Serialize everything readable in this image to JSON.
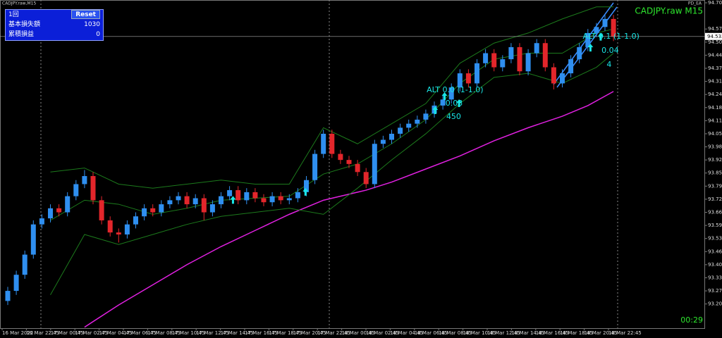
{
  "window_title": "CADJPY.raw,M15",
  "symbol_label": "CADJPY.raw M15",
  "ea_label": "PD_EA",
  "timer": "00:29",
  "panel": {
    "rows": [
      [
        "1回",
        "Reset"
      ],
      [
        "基本損失額",
        "1030"
      ],
      [
        "累積損益",
        "0"
      ]
    ]
  },
  "chart_data": {
    "type": "candlestick",
    "open": [
      93.22,
      93.27,
      93.35,
      93.45,
      93.6,
      93.63,
      93.68,
      93.66,
      93.74,
      93.8,
      93.84,
      93.72,
      93.62,
      93.56,
      93.55,
      93.6,
      93.64,
      93.68,
      93.66,
      93.7,
      93.72,
      93.74,
      93.7,
      93.73,
      93.66,
      93.7,
      93.74,
      93.77,
      93.72,
      93.76,
      93.73,
      93.71,
      93.74,
      93.72,
      93.73,
      93.76,
      93.82,
      93.95,
      94.05,
      93.95,
      93.92,
      93.9,
      93.86,
      93.8,
      94.0,
      94.02,
      94.05,
      94.08,
      94.1,
      94.12,
      94.15,
      94.19,
      94.22,
      94.28,
      94.35,
      94.3,
      94.4,
      94.45,
      94.38,
      94.42,
      94.48,
      94.36,
      94.45,
      94.5,
      94.38,
      94.3,
      94.35,
      94.42,
      94.48,
      94.55,
      94.58,
      94.62
    ],
    "high": [
      93.29,
      93.37,
      93.47,
      93.62,
      93.65,
      93.7,
      93.7,
      93.76,
      93.82,
      93.87,
      93.86,
      93.74,
      93.64,
      93.58,
      93.62,
      93.66,
      93.7,
      93.7,
      93.72,
      93.74,
      93.76,
      93.76,
      93.75,
      93.75,
      93.72,
      93.76,
      93.79,
      93.79,
      93.78,
      93.78,
      93.75,
      93.76,
      93.76,
      93.75,
      93.78,
      93.84,
      93.97,
      94.07,
      94.07,
      93.97,
      93.94,
      93.92,
      93.88,
      94.02,
      94.04,
      94.07,
      94.1,
      94.12,
      94.14,
      94.17,
      94.21,
      94.24,
      94.3,
      94.37,
      94.37,
      94.42,
      94.47,
      94.47,
      94.44,
      94.5,
      94.5,
      94.47,
      94.52,
      94.52,
      94.4,
      94.37,
      94.44,
      94.5,
      94.57,
      94.6,
      94.64,
      94.64
    ],
    "low": [
      93.2,
      93.25,
      93.33,
      93.43,
      93.58,
      93.61,
      93.64,
      93.64,
      93.72,
      93.78,
      93.7,
      93.6,
      93.54,
      93.51,
      93.53,
      93.58,
      93.62,
      93.64,
      93.64,
      93.68,
      93.7,
      93.68,
      93.68,
      93.62,
      93.64,
      93.68,
      93.72,
      93.7,
      93.7,
      93.71,
      93.69,
      93.69,
      93.7,
      93.7,
      93.71,
      93.74,
      93.8,
      93.93,
      93.93,
      93.9,
      93.88,
      93.84,
      93.78,
      93.78,
      93.98,
      94.0,
      94.03,
      94.06,
      94.08,
      94.1,
      94.13,
      94.17,
      94.2,
      94.26,
      94.28,
      94.28,
      94.38,
      94.36,
      94.36,
      94.4,
      94.34,
      94.34,
      94.43,
      94.36,
      94.27,
      94.28,
      94.33,
      94.4,
      94.46,
      94.53,
      94.56,
      94.51
    ],
    "close": [
      93.27,
      93.35,
      93.45,
      93.6,
      93.63,
      93.68,
      93.66,
      93.74,
      93.8,
      93.84,
      93.72,
      93.62,
      93.56,
      93.55,
      93.6,
      93.64,
      93.68,
      93.66,
      93.7,
      93.72,
      93.74,
      93.7,
      93.73,
      93.66,
      93.7,
      93.74,
      93.77,
      93.72,
      93.76,
      93.73,
      93.71,
      93.74,
      93.72,
      93.73,
      93.76,
      93.82,
      93.95,
      94.05,
      93.95,
      93.92,
      93.9,
      93.86,
      93.8,
      94.0,
      94.02,
      94.05,
      94.08,
      94.1,
      94.12,
      94.15,
      94.19,
      94.22,
      94.28,
      94.35,
      94.3,
      94.4,
      94.45,
      94.38,
      94.42,
      94.48,
      94.36,
      94.45,
      94.5,
      94.38,
      94.3,
      94.35,
      94.42,
      94.48,
      94.55,
      94.58,
      94.62,
      94.533
    ],
    "up_color": "#2f8ff0",
    "down_color": "#e3262b",
    "ylim": [
      93.085,
      94.714
    ],
    "yticks": [
      {
        "value": 94.7,
        "label": "94.700"
      },
      {
        "value": 94.57,
        "label": "94.570"
      },
      {
        "value": 94.505,
        "label": "94.505"
      },
      {
        "value": 94.44,
        "label": "94.440"
      },
      {
        "value": 94.375,
        "label": "94.375"
      },
      {
        "value": 94.31,
        "label": "94.310"
      },
      {
        "value": 94.245,
        "label": "94.245"
      },
      {
        "value": 94.18,
        "label": "94.180"
      },
      {
        "value": 94.115,
        "label": "94.115"
      },
      {
        "value": 94.05,
        "label": "94.050"
      },
      {
        "value": 93.985,
        "label": "93.985"
      },
      {
        "value": 93.92,
        "label": "93.920"
      },
      {
        "value": 93.855,
        "label": "93.855"
      },
      {
        "value": 93.79,
        "label": "93.790"
      },
      {
        "value": 93.725,
        "label": "93.725"
      },
      {
        "value": 93.66,
        "label": "93.660"
      },
      {
        "value": 93.595,
        "label": "93.595"
      },
      {
        "value": 93.53,
        "label": "93.530"
      },
      {
        "value": 93.465,
        "label": "93.465"
      },
      {
        "value": 93.4,
        "label": "93.400"
      },
      {
        "value": 93.335,
        "label": "93.335"
      },
      {
        "value": 93.27,
        "label": "93.270"
      },
      {
        "value": 93.205,
        "label": "93.205"
      }
    ],
    "current_price": 94.533,
    "time_labels": [
      "16 Mar 2022",
      "16 Mar 22:45",
      "17 Mar 00:45",
      "17 Mar 02:45",
      "17 Mar 04:45",
      "17 Mar 06:45",
      "17 Mar 08:45",
      "17 Mar 10:45",
      "17 Mar 12:45",
      "17 Mar 14:45",
      "17 Mar 16:45",
      "17 Mar 18:45",
      "17 Mar 20:45",
      "17 Mar 22:45",
      "18 Mar 00:45",
      "18 Mar 02:45",
      "18 Mar 04:45",
      "18 Mar 06:45",
      "18 Mar 08:45",
      "18 Mar 10:45",
      "18 Mar 12:45",
      "18 Mar 14:45",
      "18 Mar 16:45",
      "18 Mar 18:45",
      "18 Mar 20:45",
      "18 Mar 22:45"
    ],
    "series": [
      {
        "color": "#e020e0",
        "x": [
          9,
          13,
          17,
          21,
          25,
          29,
          33,
          37,
          42,
          45,
          49,
          53,
          57,
          61,
          65,
          68,
          71
        ],
        "values": [
          93.09,
          93.2,
          93.3,
          93.4,
          93.49,
          93.57,
          93.65,
          93.72,
          93.77,
          93.81,
          93.875,
          93.94,
          94.015,
          94.08,
          94.137,
          94.19,
          94.26
        ]
      },
      {
        "color": "#1c7a1c",
        "x": [
          5,
          9,
          13,
          17,
          21,
          25,
          29,
          33,
          37,
          41,
          45,
          49,
          53,
          57,
          61,
          65,
          69,
          71
        ],
        "values": [
          93.86,
          93.88,
          93.8,
          93.78,
          93.8,
          93.82,
          93.8,
          93.8,
          94.08,
          94.0,
          94.1,
          94.2,
          94.4,
          94.5,
          94.55,
          94.62,
          94.68,
          94.68
        ]
      },
      {
        "color": "#1c7a1c",
        "x": [
          5,
          9,
          13,
          17,
          21,
          25,
          29,
          33,
          37,
          41,
          45,
          49,
          53,
          57,
          61,
          65,
          69,
          71
        ],
        "values": [
          93.62,
          93.72,
          93.7,
          93.65,
          93.68,
          93.72,
          93.73,
          93.74,
          93.85,
          93.9,
          94.0,
          94.12,
          94.3,
          94.42,
          94.45,
          94.45,
          94.55,
          94.57
        ]
      },
      {
        "color": "#1c7a1c",
        "x": [
          5,
          9,
          13,
          17,
          21,
          25,
          29,
          33,
          37,
          41,
          45,
          49,
          53,
          57,
          61,
          65,
          69,
          71
        ],
        "values": [
          93.25,
          93.55,
          93.5,
          93.55,
          93.6,
          93.64,
          93.66,
          93.68,
          93.65,
          93.78,
          93.92,
          94.05,
          94.2,
          94.33,
          94.35,
          94.3,
          94.38,
          94.45
        ]
      }
    ],
    "signals": [
      {
        "x": 26.4,
        "y": 93.72
      },
      {
        "x": 34.9,
        "y": 93.76
      },
      {
        "x": 50.1,
        "y": 94.165
      },
      {
        "x": 51.2,
        "y": 94.235
      },
      {
        "x": 52.9,
        "y": 94.2
      },
      {
        "x": 68.3,
        "y": 94.476
      },
      {
        "x": 69.5,
        "y": 94.53
      }
    ],
    "annotations": [
      {
        "text": "ALT 0.0 (1-1.0)",
        "x": 49.1,
        "y": 94.267
      },
      {
        "text": "0.03",
        "x": 51.3,
        "y": 94.2
      },
      {
        "text": "450",
        "x": 51.4,
        "y": 94.134
      },
      {
        "text": "ALT 0.1 (1-1.0)",
        "x": 67.4,
        "y": 94.532
      },
      {
        "text": "0.04",
        "x": 69.6,
        "y": 94.462
      },
      {
        "text": "4",
        "x": 70.2,
        "y": 94.392
      }
    ]
  }
}
